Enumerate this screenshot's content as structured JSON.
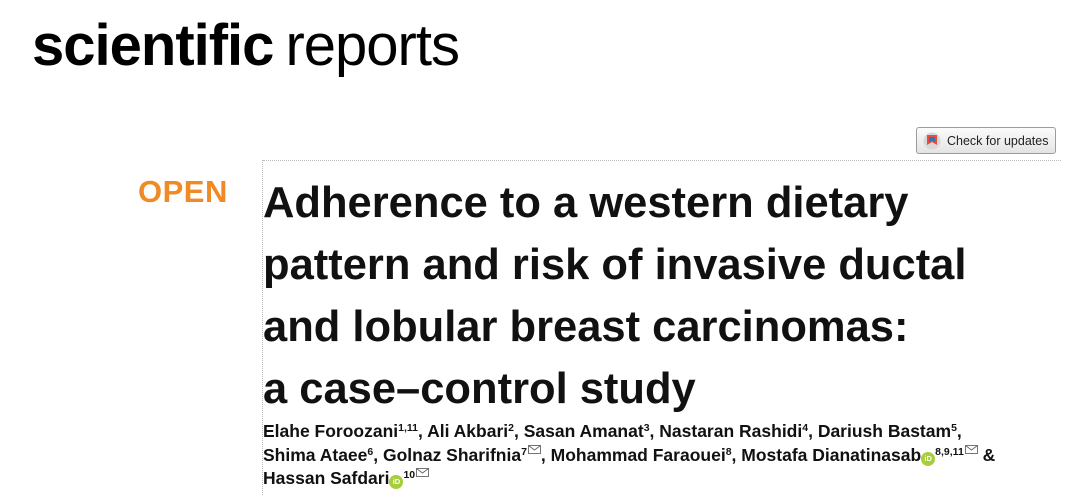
{
  "masthead": {
    "bold": "scientific",
    "light": "reports"
  },
  "updates_button": {
    "label": "Check for updates",
    "icon": "crossmark-icon"
  },
  "badge": "OPEN",
  "title_lines": [
    "Adherence to a western dietary",
    "pattern and risk of invasive ductal",
    "and lobular breast carcinomas:",
    "a case–control study"
  ],
  "authors": [
    {
      "name": "Elahe Foroozani",
      "aff": "1,11",
      "sep": ", "
    },
    {
      "name": "Ali Akbari",
      "aff": "2",
      "sep": ", "
    },
    {
      "name": "Sasan Amanat",
      "aff": "3",
      "sep": ", "
    },
    {
      "name": "Nastaran Rashidi",
      "aff": "4",
      "sep": ", "
    },
    {
      "name": "Dariush Bastam",
      "aff": "5",
      "sep": ","
    },
    {
      "name": "Shima Ataee",
      "aff": "6",
      "sep": ", "
    },
    {
      "name": "Golnaz Sharifnia",
      "aff": "7",
      "mail": true,
      "sep": ", "
    },
    {
      "name": "Mohammad Faraouei",
      "aff": "8",
      "sep": ", "
    },
    {
      "name": "Mostafa Dianatinasab",
      "orcid": true,
      "aff": "8,9,11",
      "mail": true,
      "sep": " &"
    },
    {
      "name": "Hassan Safdari",
      "orcid": true,
      "aff": "10",
      "mail": true,
      "sep": ""
    }
  ],
  "orcid_label": "iD",
  "colors": {
    "open": "#f08a24",
    "orcid": "#a6ce39"
  }
}
